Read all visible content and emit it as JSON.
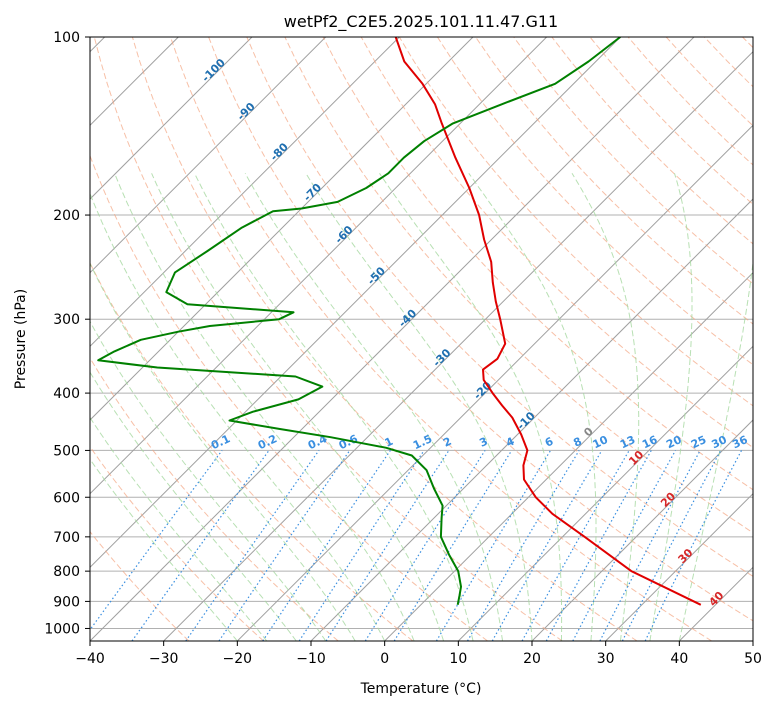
{
  "chart_data": {
    "type": "line",
    "title": "wetPf2_C2E5.2025.101.11.47.G11",
    "xlabel": "Temperature (°C)",
    "ylabel": "Pressure (hPa)",
    "xlim": [
      -40,
      50
    ],
    "ylim": [
      1050,
      100
    ],
    "y_scale": "log",
    "x_ticks": [
      -40,
      -30,
      -20,
      -10,
      0,
      10,
      20,
      30,
      40,
      50
    ],
    "y_ticks": [
      100,
      200,
      300,
      400,
      500,
      600,
      700,
      800,
      900,
      1000
    ],
    "grid": true,
    "skew": "isotherms slanted at 45 degrees",
    "colors": {
      "temperature": "#e00000",
      "dewpoint": "#008000",
      "isotherm": "#a0a0a0",
      "dry_adiabat": "#f4a582",
      "moist_adiabat": "#a6d8a0",
      "mixing_ratio": "#3a8fe0",
      "isotherm_label": "#1f6fb0",
      "red_label": "#d62728"
    },
    "series": [
      {
        "role": "temperature",
        "points": [
          {
            "p": 912,
            "t": 38.0
          },
          {
            "p": 800,
            "t": 24.0
          },
          {
            "p": 700,
            "t": 13.0
          },
          {
            "p": 640,
            "t": 5.5
          },
          {
            "p": 600,
            "t": 1.0
          },
          {
            "p": 560,
            "t": -3.0
          },
          {
            "p": 530,
            "t": -5.0
          },
          {
            "p": 500,
            "t": -6.5
          },
          {
            "p": 470,
            "t": -9.5
          },
          {
            "p": 440,
            "t": -13.0
          },
          {
            "p": 420,
            "t": -16.0
          },
          {
            "p": 400,
            "t": -19.0
          },
          {
            "p": 380,
            "t": -22.0
          },
          {
            "p": 365,
            "t": -23.5
          },
          {
            "p": 350,
            "t": -23.0
          },
          {
            "p": 330,
            "t": -24.0
          },
          {
            "p": 300,
            "t": -28.0
          },
          {
            "p": 280,
            "t": -31.0
          },
          {
            "p": 260,
            "t": -34.0
          },
          {
            "p": 240,
            "t": -37.0
          },
          {
            "p": 220,
            "t": -41.0
          },
          {
            "p": 200,
            "t": -45.0
          },
          {
            "p": 180,
            "t": -50.0
          },
          {
            "p": 160,
            "t": -56.0
          },
          {
            "p": 140,
            "t": -62.5
          },
          {
            "p": 130,
            "t": -66.0
          },
          {
            "p": 120,
            "t": -70.5
          },
          {
            "p": 110,
            "t": -76.0
          },
          {
            "p": 100,
            "t": -80.5
          }
        ]
      },
      {
        "role": "dewpoint",
        "points": [
          {
            "p": 912,
            "t": 5.0
          },
          {
            "p": 880,
            "t": 4.0
          },
          {
            "p": 850,
            "t": 3.0
          },
          {
            "p": 800,
            "t": 0.5
          },
          {
            "p": 750,
            "t": -3.0
          },
          {
            "p": 700,
            "t": -6.5
          },
          {
            "p": 650,
            "t": -9.0
          },
          {
            "p": 620,
            "t": -10.5
          },
          {
            "p": 580,
            "t": -14.0
          },
          {
            "p": 540,
            "t": -17.5
          },
          {
            "p": 510,
            "t": -21.5
          },
          {
            "p": 495,
            "t": -26.0
          },
          {
            "p": 475,
            "t": -35.0
          },
          {
            "p": 460,
            "t": -43.0
          },
          {
            "p": 445,
            "t": -51.0
          },
          {
            "p": 430,
            "t": -49.0
          },
          {
            "p": 410,
            "t": -44.5
          },
          {
            "p": 390,
            "t": -43.0
          },
          {
            "p": 375,
            "t": -48.0
          },
          {
            "p": 362,
            "t": -68.0
          },
          {
            "p": 352,
            "t": -77.0
          },
          {
            "p": 340,
            "t": -76.0
          },
          {
            "p": 325,
            "t": -74.0
          },
          {
            "p": 315,
            "t": -70.0
          },
          {
            "p": 308,
            "t": -66.5
          },
          {
            "p": 300,
            "t": -58.0
          },
          {
            "p": 292,
            "t": -57.0
          },
          {
            "p": 283,
            "t": -72.5
          },
          {
            "p": 270,
            "t": -77.0
          },
          {
            "p": 250,
            "t": -78.5
          },
          {
            "p": 230,
            "t": -77.0
          },
          {
            "p": 210,
            "t": -75.5
          },
          {
            "p": 197,
            "t": -73.5
          },
          {
            "p": 195,
            "t": -70.0
          },
          {
            "p": 190,
            "t": -66.0
          },
          {
            "p": 180,
            "t": -64.0
          },
          {
            "p": 170,
            "t": -63.0
          },
          {
            "p": 160,
            "t": -63.0
          },
          {
            "p": 150,
            "t": -62.5
          },
          {
            "p": 140,
            "t": -61.0
          },
          {
            "p": 130,
            "t": -57.0
          },
          {
            "p": 120,
            "t": -52.5
          },
          {
            "p": 110,
            "t": -51.0
          },
          {
            "p": 100,
            "t": -50.0
          }
        ]
      }
    ],
    "isotherm_labels": [
      "-100",
      "-90",
      "-80",
      "-70",
      "-60",
      "-50",
      "-40",
      "-30",
      "-20",
      "-10",
      "0",
      "10",
      "20",
      "30",
      "40"
    ],
    "isotherm_label_values": [
      -100,
      -90,
      -80,
      -70,
      -60,
      -50,
      -40,
      -30,
      -20,
      -10,
      0,
      10,
      20,
      30,
      40
    ],
    "mixing_ratio_labels": [
      "0.1",
      "0.2",
      "0.4",
      "0.6",
      "1",
      "1.5",
      "2",
      "3",
      "4",
      "6",
      "8",
      "10",
      "13",
      "16",
      "20",
      "25",
      "30",
      "36"
    ],
    "mixing_ratio_values": [
      0.1,
      0.2,
      0.4,
      0.6,
      1,
      1.5,
      2,
      3,
      4,
      6,
      8,
      10,
      13,
      16,
      20,
      25,
      30,
      36
    ]
  }
}
